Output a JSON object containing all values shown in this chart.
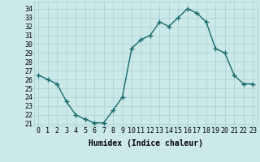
{
  "x": [
    0,
    1,
    2,
    3,
    4,
    5,
    6,
    7,
    8,
    9,
    10,
    11,
    12,
    13,
    14,
    15,
    16,
    17,
    18,
    19,
    20,
    21,
    22,
    23
  ],
  "y": [
    26.5,
    26.0,
    25.5,
    23.5,
    22.0,
    21.5,
    21.1,
    21.1,
    22.5,
    24.0,
    29.5,
    30.5,
    31.0,
    32.5,
    32.0,
    33.0,
    34.0,
    33.5,
    32.5,
    29.5,
    29.0,
    26.5,
    25.5,
    25.5
  ],
  "line_color": "#1a6b6b",
  "marker": "+",
  "marker_size": 4,
  "marker_linewidth": 1.0,
  "linewidth": 1.0,
  "xlabel": "Humidex (Indice chaleur)",
  "ylabel_ticks": [
    21,
    22,
    23,
    24,
    25,
    26,
    27,
    28,
    29,
    30,
    31,
    32,
    33,
    34
  ],
  "ylim": [
    20.7,
    34.8
  ],
  "xlim": [
    -0.5,
    23.5
  ],
  "bg_color": "#cce9e9",
  "grid_color": "#aacece",
  "tick_fontsize": 6.0,
  "xlabel_fontsize": 7.0
}
